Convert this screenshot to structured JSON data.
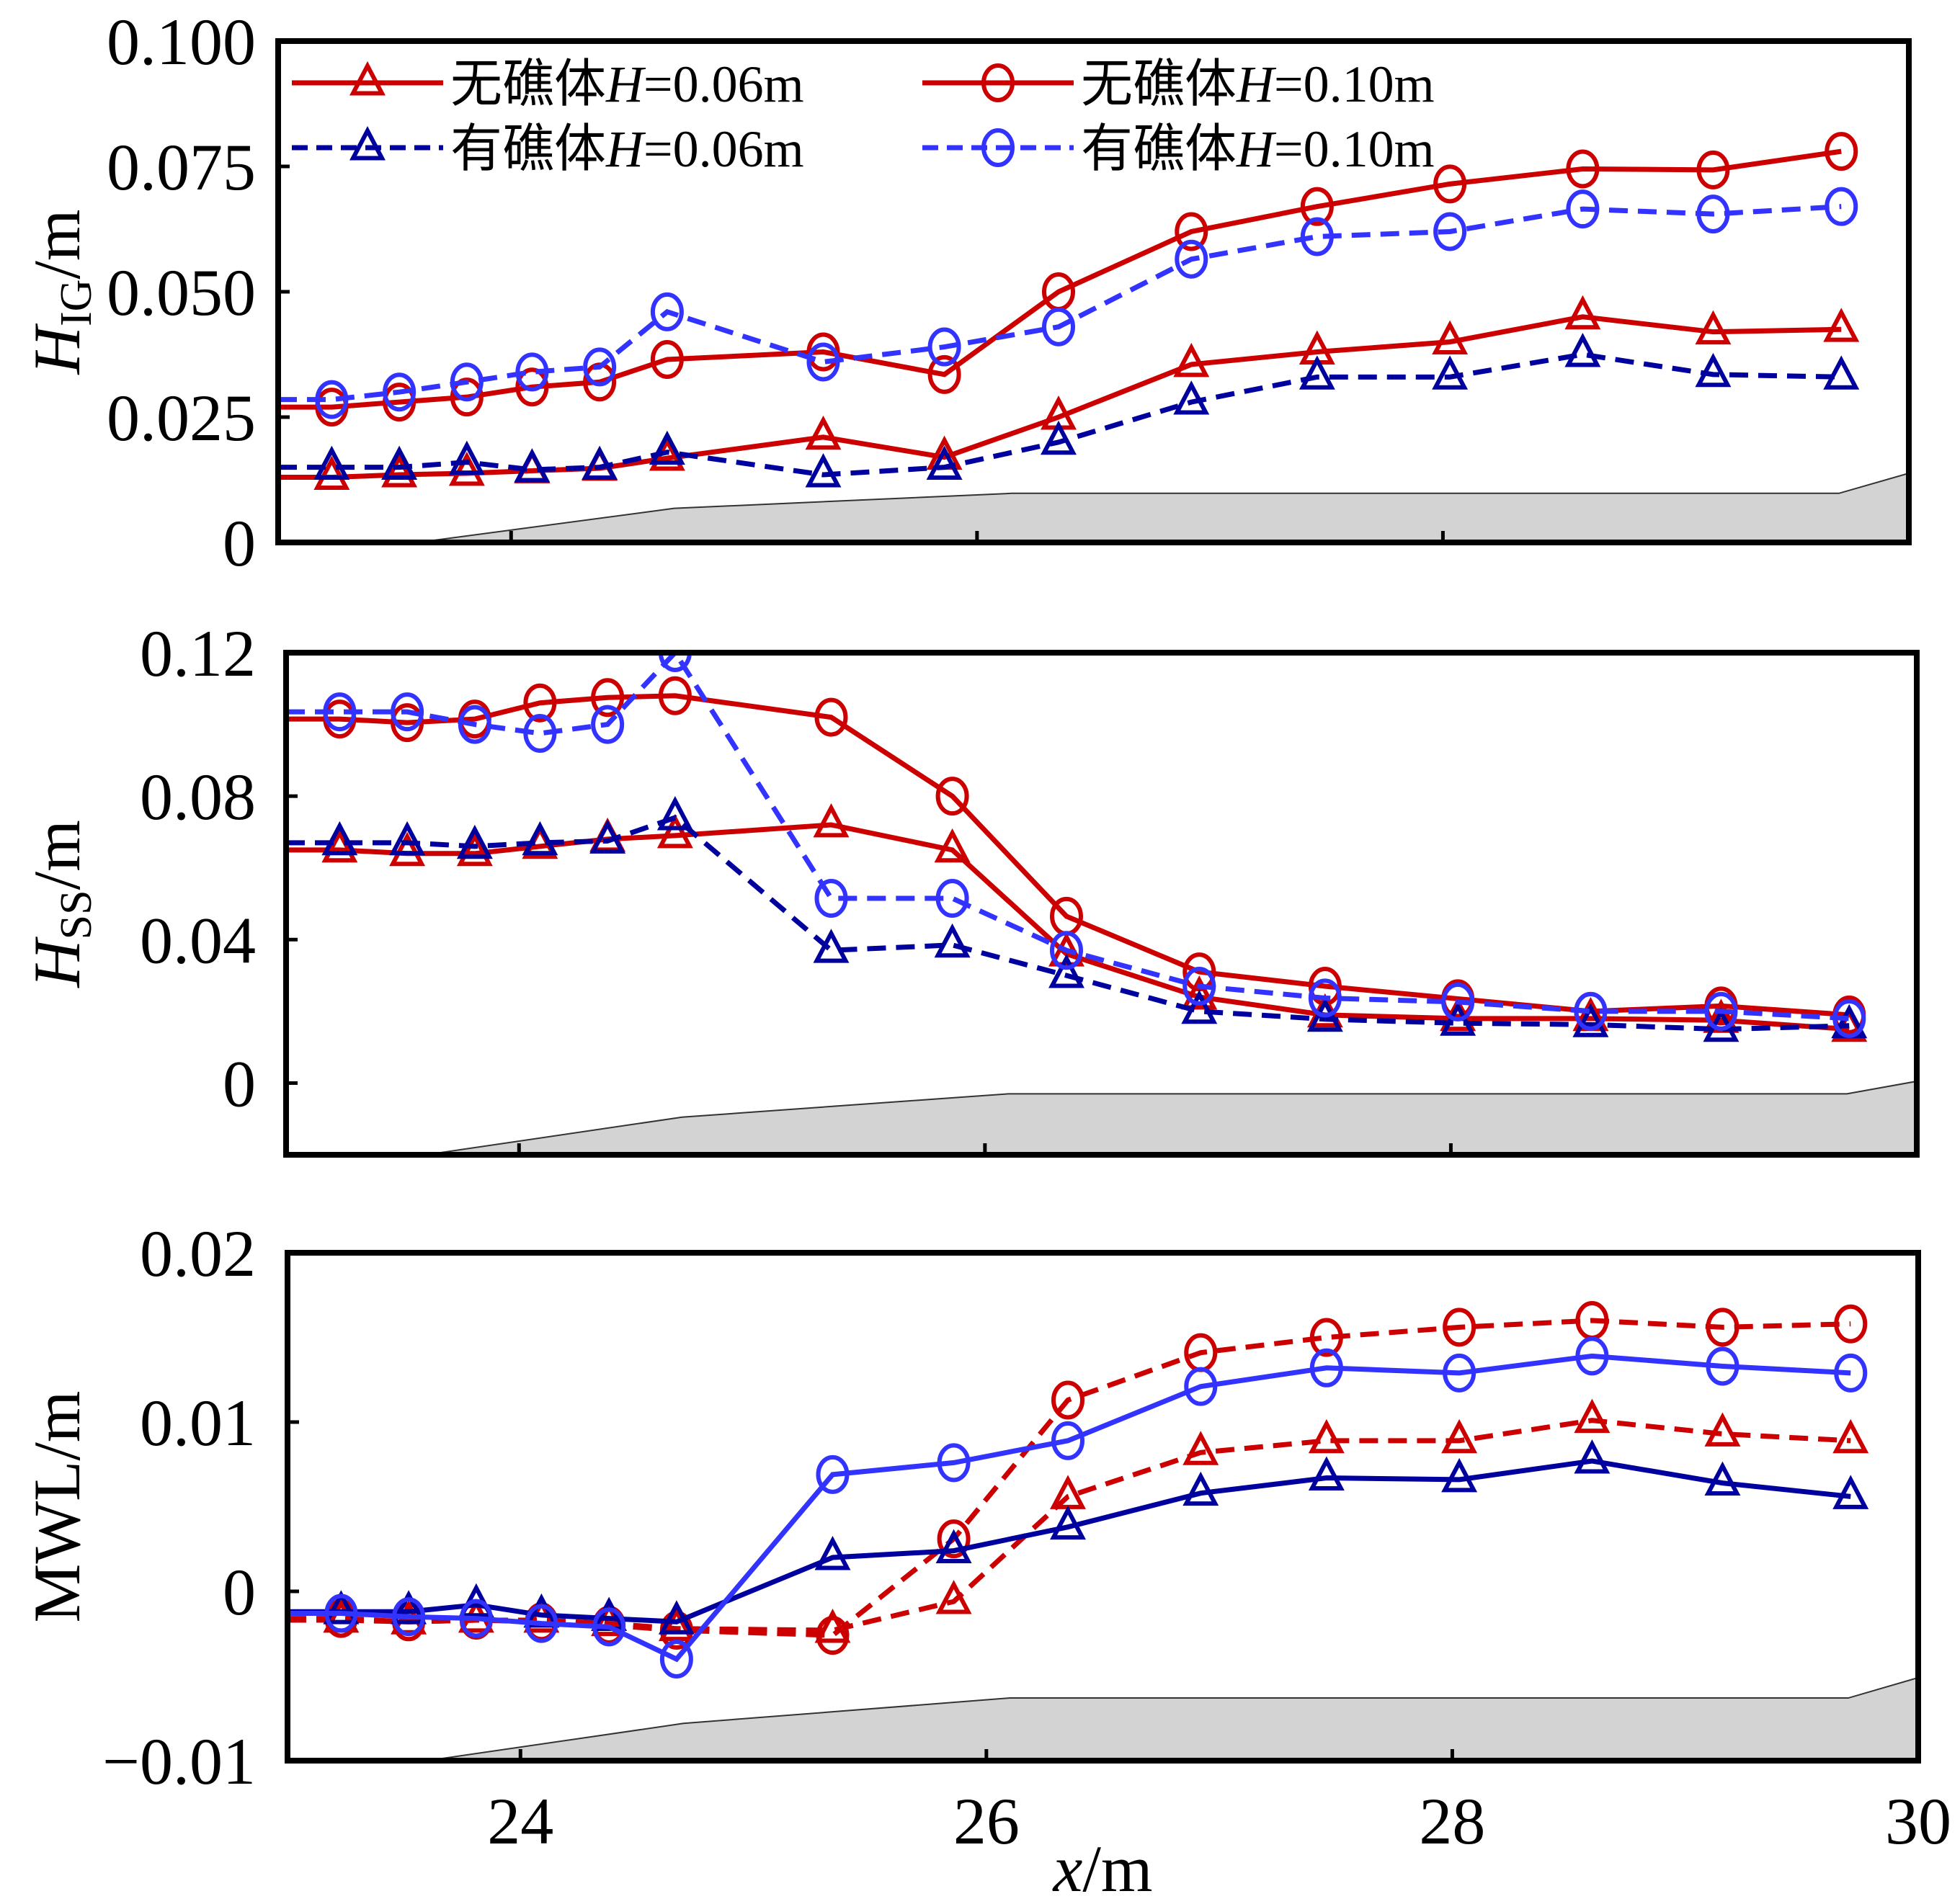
{
  "chart_data": [
    {
      "id": "hig",
      "type": "line",
      "title": "",
      "ylabel": {
        "main": "H",
        "sub": "IG",
        "unit": "/m"
      },
      "xlabel": "",
      "xlim": [
        23,
        30
      ],
      "ylim": [
        0,
        0.1
      ],
      "xticks": [
        24,
        26,
        28,
        30
      ],
      "xtick_labels": [
        "",
        "",
        "",
        ""
      ],
      "yticks": [
        0,
        0.025,
        0.05,
        0.075,
        0.1
      ],
      "ytick_labels": [
        "0",
        "0.025",
        "0.050",
        "0.075",
        "0.100"
      ],
      "grid": false,
      "legend": {
        "placement": "top-left",
        "entries": [
          {
            "label_prefix": "无礁体",
            "label_var": "H",
            "label_suffix": "=0.06m",
            "series": 0
          },
          {
            "label_prefix": "无礁体",
            "label_var": "H",
            "label_suffix": "=0.10m",
            "series": 1
          },
          {
            "label_prefix": "有礁体",
            "label_var": "H",
            "label_suffix": "=0.06m",
            "series": 2
          },
          {
            "label_prefix": "有礁体",
            "label_var": "H",
            "label_suffix": "=0.10m",
            "series": 3
          }
        ]
      },
      "x": [
        23.23,
        23.52,
        23.81,
        24.09,
        24.38,
        24.67,
        25.34,
        25.86,
        26.35,
        26.92,
        27.46,
        28.03,
        28.6,
        29.16,
        29.71
      ],
      "series": [
        {
          "name": "无礁体H=0.06m",
          "color": "#cc0000",
          "marker": "triangle",
          "dash": false,
          "values": [
            0.013,
            0.0135,
            0.0138,
            0.0143,
            0.0148,
            0.0168,
            0.021,
            0.017,
            0.025,
            0.0355,
            0.038,
            0.04,
            0.045,
            0.042,
            0.0425
          ]
        },
        {
          "name": "无礁体H=0.10m",
          "color": "#cc0000",
          "marker": "circle",
          "dash": false,
          "values": [
            0.027,
            0.028,
            0.029,
            0.031,
            0.032,
            0.0365,
            0.038,
            0.0335,
            0.05,
            0.062,
            0.067,
            0.0715,
            0.0745,
            0.0743,
            0.078
          ]
        },
        {
          "name": "有礁体H=0.06m",
          "color": "#00009f",
          "marker": "triangle",
          "dash": true,
          "values": [
            0.015,
            0.015,
            0.016,
            0.0145,
            0.015,
            0.018,
            0.0135,
            0.015,
            0.02,
            0.028,
            0.033,
            0.033,
            0.0375,
            0.0335,
            0.033
          ]
        },
        {
          "name": "有礁体H=0.10m",
          "color": "#3333ff",
          "marker": "circle",
          "dash": true,
          "values": [
            0.0285,
            0.03,
            0.032,
            0.034,
            0.035,
            0.046,
            0.036,
            0.039,
            0.043,
            0.0565,
            0.061,
            0.062,
            0.0665,
            0.0655,
            0.067
          ]
        }
      ],
      "bathymetry": {
        "x": [
          23.6,
          24.7,
          26.15,
          29.7,
          30.0
        ],
        "y": [
          0,
          0.0068,
          0.0098,
          0.0098,
          0.0138
        ]
      }
    },
    {
      "id": "hss",
      "type": "line",
      "title": "",
      "ylabel": {
        "main": "H",
        "sub": "SS",
        "unit": "/m"
      },
      "xlabel": "",
      "xlim": [
        23,
        30
      ],
      "ylim": [
        -0.02,
        0.12
      ],
      "xticks": [
        24,
        26,
        28,
        30
      ],
      "xtick_labels": [
        "",
        "",
        "",
        ""
      ],
      "yticks": [
        0,
        0.04,
        0.08,
        0.12
      ],
      "ytick_labels": [
        "0",
        "0.04",
        "0.08",
        "0.12"
      ],
      "grid": false,
      "x": [
        23.23,
        23.52,
        23.81,
        24.09,
        24.38,
        24.67,
        25.34,
        25.86,
        26.35,
        26.92,
        27.46,
        28.03,
        28.6,
        29.16,
        29.71
      ],
      "series": [
        {
          "name": "无礁体H=0.06m",
          "color": "#cc0000",
          "marker": "triangle",
          "dash": false,
          "values": [
            0.065,
            0.064,
            0.064,
            0.066,
            0.068,
            0.069,
            0.072,
            0.065,
            0.036,
            0.024,
            0.019,
            0.018,
            0.018,
            0.0175,
            0.015
          ]
        },
        {
          "name": "无礁体H=0.10m",
          "color": "#cc0000",
          "marker": "circle",
          "dash": false,
          "values": [
            0.1015,
            0.1005,
            0.1015,
            0.106,
            0.1075,
            0.108,
            0.102,
            0.08,
            0.0465,
            0.031,
            0.027,
            0.0235,
            0.02,
            0.0215,
            0.019
          ]
        },
        {
          "name": "有礁体H=0.06m",
          "color": "#00009f",
          "marker": "triangle",
          "dash": true,
          "values": [
            0.067,
            0.067,
            0.066,
            0.067,
            0.0675,
            0.074,
            0.037,
            0.0385,
            0.03,
            0.02,
            0.0178,
            0.0167,
            0.0163,
            0.015,
            0.016
          ]
        },
        {
          "name": "有礁体H=0.10m",
          "color": "#3333ff",
          "marker": "circle",
          "dash": true,
          "values": [
            0.1035,
            0.1035,
            0.1,
            0.0975,
            0.1,
            0.12,
            0.0515,
            0.0515,
            0.037,
            0.027,
            0.0237,
            0.0226,
            0.02,
            0.02,
            0.018
          ]
        }
      ],
      "bathymetry": {
        "x": [
          23.6,
          24.7,
          26.1,
          29.7,
          30.0
        ],
        "y": [
          -0.02,
          -0.0095,
          -0.003,
          -0.003,
          0.0005
        ]
      }
    },
    {
      "id": "mwl",
      "type": "line",
      "title": "",
      "ylabel": {
        "main": "MWL",
        "sub": "",
        "unit": "/m"
      },
      "xlabel": {
        "var": "x",
        "unit": "/m"
      },
      "xlim": [
        23,
        30
      ],
      "ylim": [
        -0.01,
        0.02
      ],
      "xticks": [
        24,
        26,
        28,
        30
      ],
      "xtick_labels": [
        "24",
        "26",
        "28",
        "30"
      ],
      "yticks": [
        -0.01,
        0,
        0.01,
        0.02
      ],
      "ytick_labels": [
        "−0.01",
        "0",
        "0.01",
        "0.02"
      ],
      "grid": false,
      "x": [
        23.23,
        23.52,
        23.81,
        24.09,
        24.38,
        24.67,
        25.34,
        25.86,
        26.35,
        26.92,
        27.46,
        28.03,
        28.6,
        29.16,
        29.71
      ],
      "series": [
        {
          "name": "无礁体H=0.06m",
          "color": "#cc0000",
          "marker": "triangle",
          "dash": true,
          "values": [
            -0.0017,
            -0.0018,
            -0.0017,
            -0.0017,
            -0.0019,
            -0.0022,
            -0.0023,
            -0.0006,
            0.0056,
            0.0082,
            0.0089,
            0.0089,
            0.0101,
            0.0093,
            0.0089
          ]
        },
        {
          "name": "无礁体H=0.10m",
          "color": "#cc0000",
          "marker": "circle",
          "dash": true,
          "values": [
            -0.0016,
            -0.0018,
            -0.0017,
            -0.0018,
            -0.002,
            -0.0023,
            -0.0026,
            0.0031,
            0.0113,
            0.0141,
            0.015,
            0.0156,
            0.016,
            0.0156,
            0.0158
          ]
        },
        {
          "name": "有礁体H=0.06m",
          "color": "#00009f",
          "marker": "triangle",
          "dash": false,
          "values": [
            -0.0012,
            -0.0012,
            -0.0008,
            -0.0014,
            -0.0016,
            -0.0018,
            0.002,
            0.0024,
            0.0038,
            0.0058,
            0.0067,
            0.0066,
            0.0077,
            0.0064,
            0.0056
          ]
        },
        {
          "name": "有礁体H=0.10m",
          "color": "#3333ff",
          "marker": "circle",
          "dash": false,
          "values": [
            -0.0013,
            -0.0015,
            -0.0016,
            -0.0019,
            -0.0021,
            -0.004,
            0.0069,
            0.0076,
            0.0089,
            0.0121,
            0.0132,
            0.0129,
            0.0139,
            0.0133,
            0.0129
          ]
        }
      ],
      "bathymetry": {
        "x": [
          23.6,
          24.7,
          26.1,
          29.7,
          30.0
        ],
        "y": [
          -0.01,
          -0.0078,
          -0.0063,
          -0.0063,
          -0.0051
        ]
      }
    }
  ],
  "colors": {
    "bathymetry_fill": "#d3d3d3",
    "axis": "#000000"
  }
}
